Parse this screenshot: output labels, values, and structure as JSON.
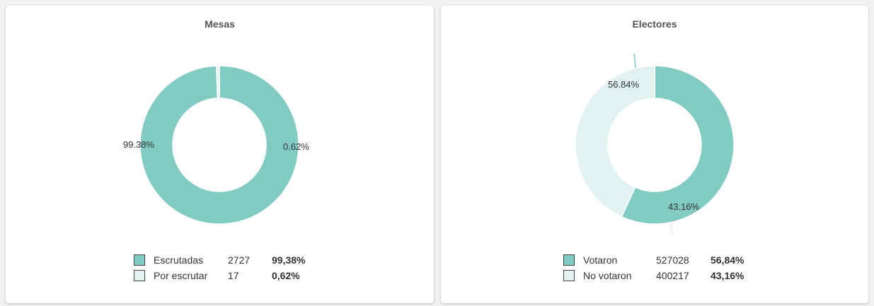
{
  "colors": {
    "primary": "#82cbc4",
    "secondary": "#e2f2f1",
    "border": "#444444"
  },
  "chart_data": [
    {
      "type": "pie",
      "subtype": "donut",
      "title": "Mesas",
      "slices": [
        {
          "label": "Escrutadas",
          "count": "2727",
          "value": 99.38,
          "data_label": "99.38%",
          "legend_pct": "99,38%",
          "color": "#82cbc4"
        },
        {
          "label": "Por escrutar",
          "count": "17",
          "value": 0.62,
          "data_label": "0.62%",
          "legend_pct": "0,62%",
          "color": "#e2f2f1"
        }
      ]
    },
    {
      "type": "pie",
      "subtype": "donut",
      "title": "Electores",
      "slices": [
        {
          "label": "Votaron",
          "count": "527028",
          "value": 56.84,
          "data_label": "56.84%",
          "legend_pct": "56,84%",
          "color": "#82cbc4"
        },
        {
          "label": "No votaron",
          "count": "400217",
          "value": 43.16,
          "data_label": "43.16%",
          "legend_pct": "43,16%",
          "color": "#e2f2f1"
        }
      ]
    }
  ]
}
